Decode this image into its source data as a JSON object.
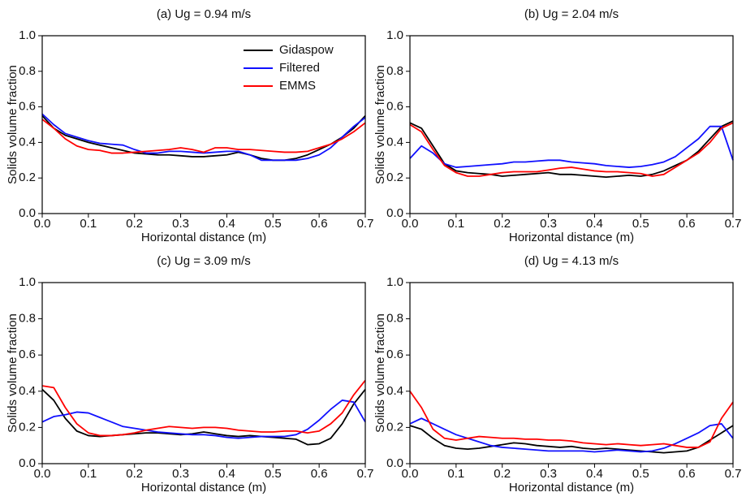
{
  "chart_data": [
    {
      "type": "line",
      "title": "(a) Ug = 0.94 m/s",
      "xlabel": "Horizontal distance (m)",
      "ylabel": "Solids volume fraction",
      "legend": "upper right",
      "x": [
        0,
        0.025,
        0.05,
        0.075,
        0.1,
        0.125,
        0.15,
        0.175,
        0.2,
        0.225,
        0.25,
        0.275,
        0.3,
        0.325,
        0.35,
        0.375,
        0.4,
        0.425,
        0.45,
        0.475,
        0.5,
        0.525,
        0.55,
        0.575,
        0.6,
        0.625,
        0.65,
        0.675,
        0.7
      ],
      "series": [
        {
          "name": "Gidaspow",
          "color": "#000000",
          "values": [
            0.55,
            0.48,
            0.44,
            0.42,
            0.4,
            0.385,
            0.37,
            0.355,
            0.34,
            0.335,
            0.33,
            0.33,
            0.325,
            0.32,
            0.32,
            0.325,
            0.33,
            0.345,
            0.33,
            0.31,
            0.3,
            0.3,
            0.31,
            0.33,
            0.36,
            0.39,
            0.43,
            0.48,
            0.55
          ]
        },
        {
          "name": "Filtered",
          "color": "#1010ff",
          "values": [
            0.56,
            0.5,
            0.45,
            0.43,
            0.41,
            0.395,
            0.39,
            0.385,
            0.36,
            0.34,
            0.34,
            0.35,
            0.35,
            0.345,
            0.34,
            0.345,
            0.35,
            0.35,
            0.33,
            0.3,
            0.3,
            0.3,
            0.3,
            0.31,
            0.33,
            0.37,
            0.43,
            0.49,
            0.54
          ]
        },
        {
          "name": "EMMS",
          "color": "#ff0000",
          "values": [
            0.53,
            0.48,
            0.42,
            0.38,
            0.36,
            0.355,
            0.34,
            0.34,
            0.345,
            0.35,
            0.355,
            0.36,
            0.37,
            0.36,
            0.345,
            0.37,
            0.37,
            0.36,
            0.36,
            0.355,
            0.35,
            0.345,
            0.345,
            0.35,
            0.37,
            0.39,
            0.42,
            0.46,
            0.51
          ]
        }
      ],
      "xlim": [
        0,
        0.7
      ],
      "ylim": [
        0,
        1
      ],
      "xticks": [
        {
          "value": 0,
          "label": "0.0"
        },
        0.1,
        0.2,
        0.3,
        0.4,
        0.5,
        0.6,
        0.7
      ],
      "yticks": [
        {
          "value": 0,
          "label": "0.0"
        },
        0.2,
        0.4,
        0.6,
        0.8,
        {
          "value": 1,
          "label": "1.0"
        }
      ]
    },
    {
      "type": "line",
      "title": "(b) Ug = 2.04 m/s",
      "xlabel": "Horizontal distance (m)",
      "ylabel": "Solids volume fraction",
      "x": [
        0,
        0.025,
        0.05,
        0.075,
        0.1,
        0.125,
        0.15,
        0.175,
        0.2,
        0.225,
        0.25,
        0.275,
        0.3,
        0.325,
        0.35,
        0.375,
        0.4,
        0.425,
        0.45,
        0.475,
        0.5,
        0.525,
        0.55,
        0.575,
        0.6,
        0.625,
        0.65,
        0.675,
        0.7
      ],
      "series": [
        {
          "color": "#000000",
          "values": [
            0.51,
            0.48,
            0.38,
            0.28,
            0.24,
            0.23,
            0.225,
            0.22,
            0.21,
            0.215,
            0.22,
            0.225,
            0.23,
            0.22,
            0.22,
            0.215,
            0.21,
            0.205,
            0.21,
            0.215,
            0.21,
            0.22,
            0.24,
            0.27,
            0.3,
            0.35,
            0.42,
            0.49,
            0.52
          ]
        },
        {
          "color": "#1010ff",
          "values": [
            0.31,
            0.38,
            0.34,
            0.28,
            0.26,
            0.265,
            0.27,
            0.275,
            0.28,
            0.29,
            0.29,
            0.295,
            0.3,
            0.3,
            0.29,
            0.285,
            0.28,
            0.27,
            0.265,
            0.26,
            0.265,
            0.275,
            0.29,
            0.32,
            0.37,
            0.42,
            0.49,
            0.49,
            0.3
          ]
        },
        {
          "color": "#ff0000",
          "values": [
            0.5,
            0.46,
            0.36,
            0.27,
            0.23,
            0.21,
            0.21,
            0.22,
            0.23,
            0.235,
            0.235,
            0.235,
            0.245,
            0.255,
            0.26,
            0.25,
            0.24,
            0.235,
            0.235,
            0.23,
            0.225,
            0.21,
            0.22,
            0.26,
            0.3,
            0.34,
            0.4,
            0.48,
            0.51
          ]
        }
      ],
      "xlim": [
        0,
        0.7
      ],
      "ylim": [
        0,
        1
      ],
      "xticks": [
        {
          "value": 0,
          "label": "0.0"
        },
        0.1,
        0.2,
        0.3,
        0.4,
        0.5,
        0.6,
        0.7
      ],
      "yticks": [
        {
          "value": 0,
          "label": "0.0"
        },
        0.2,
        0.4,
        0.6,
        0.8,
        {
          "value": 1,
          "label": "1.0"
        }
      ]
    },
    {
      "type": "line",
      "title": "(c) Ug = 3.09 m/s",
      "xlabel": "Horizontal distance (m)",
      "ylabel": "Solids volume fraction",
      "x": [
        0,
        0.025,
        0.05,
        0.075,
        0.1,
        0.125,
        0.15,
        0.175,
        0.2,
        0.225,
        0.25,
        0.275,
        0.3,
        0.325,
        0.35,
        0.375,
        0.4,
        0.425,
        0.45,
        0.475,
        0.5,
        0.525,
        0.55,
        0.575,
        0.6,
        0.625,
        0.65,
        0.675,
        0.7
      ],
      "series": [
        {
          "color": "#000000",
          "values": [
            0.41,
            0.35,
            0.25,
            0.18,
            0.155,
            0.15,
            0.155,
            0.16,
            0.165,
            0.17,
            0.17,
            0.165,
            0.16,
            0.165,
            0.175,
            0.165,
            0.155,
            0.15,
            0.155,
            0.15,
            0.145,
            0.14,
            0.135,
            0.105,
            0.11,
            0.14,
            0.22,
            0.33,
            0.41
          ]
        },
        {
          "color": "#1010ff",
          "values": [
            0.23,
            0.26,
            0.27,
            0.285,
            0.28,
            0.255,
            0.23,
            0.205,
            0.195,
            0.185,
            0.175,
            0.17,
            0.165,
            0.16,
            0.16,
            0.155,
            0.145,
            0.14,
            0.145,
            0.15,
            0.15,
            0.15,
            0.16,
            0.19,
            0.24,
            0.3,
            0.35,
            0.34,
            0.23
          ]
        },
        {
          "color": "#ff0000",
          "values": [
            0.43,
            0.42,
            0.31,
            0.22,
            0.17,
            0.155,
            0.155,
            0.16,
            0.17,
            0.185,
            0.195,
            0.205,
            0.2,
            0.195,
            0.2,
            0.2,
            0.195,
            0.185,
            0.18,
            0.175,
            0.175,
            0.18,
            0.18,
            0.17,
            0.18,
            0.22,
            0.28,
            0.38,
            0.46
          ]
        }
      ],
      "xlim": [
        0,
        0.7
      ],
      "ylim": [
        0,
        1
      ],
      "xticks": [
        {
          "value": 0,
          "label": "0.0"
        },
        0.1,
        0.2,
        0.3,
        0.4,
        0.5,
        0.6,
        0.7
      ],
      "yticks": [
        {
          "value": 0,
          "label": "0.0"
        },
        0.2,
        0.4,
        0.6,
        0.8,
        {
          "value": 1,
          "label": "1.0"
        }
      ]
    },
    {
      "type": "line",
      "title": "(d) Ug = 4.13 m/s",
      "xlabel": "Horizontal distance (m)",
      "ylabel": "Solids volume fraction",
      "x": [
        0,
        0.025,
        0.05,
        0.075,
        0.1,
        0.125,
        0.15,
        0.175,
        0.2,
        0.225,
        0.25,
        0.275,
        0.3,
        0.325,
        0.35,
        0.375,
        0.4,
        0.425,
        0.45,
        0.475,
        0.5,
        0.525,
        0.55,
        0.575,
        0.6,
        0.625,
        0.65,
        0.675,
        0.7
      ],
      "series": [
        {
          "color": "#000000",
          "values": [
            0.21,
            0.19,
            0.14,
            0.1,
            0.085,
            0.08,
            0.085,
            0.095,
            0.105,
            0.115,
            0.11,
            0.1,
            0.095,
            0.09,
            0.095,
            0.085,
            0.08,
            0.085,
            0.08,
            0.075,
            0.07,
            0.065,
            0.06,
            0.065,
            0.07,
            0.09,
            0.13,
            0.17,
            0.21
          ]
        },
        {
          "color": "#1010ff",
          "values": [
            0.22,
            0.25,
            0.22,
            0.19,
            0.16,
            0.14,
            0.12,
            0.1,
            0.09,
            0.085,
            0.08,
            0.075,
            0.07,
            0.07,
            0.07,
            0.07,
            0.065,
            0.07,
            0.075,
            0.07,
            0.065,
            0.07,
            0.085,
            0.11,
            0.14,
            0.17,
            0.21,
            0.22,
            0.14
          ]
        },
        {
          "color": "#ff0000",
          "values": [
            0.4,
            0.31,
            0.19,
            0.14,
            0.13,
            0.14,
            0.15,
            0.145,
            0.14,
            0.14,
            0.135,
            0.135,
            0.13,
            0.13,
            0.125,
            0.115,
            0.11,
            0.105,
            0.11,
            0.105,
            0.1,
            0.105,
            0.11,
            0.1,
            0.09,
            0.09,
            0.12,
            0.25,
            0.34
          ]
        }
      ],
      "xlim": [
        0,
        0.7
      ],
      "ylim": [
        0,
        1
      ],
      "xticks": [
        {
          "value": 0,
          "label": "0.0"
        },
        0.1,
        0.2,
        0.3,
        0.4,
        0.5,
        0.6,
        0.7
      ],
      "yticks": [
        {
          "value": 0,
          "label": "0.0"
        },
        0.2,
        0.4,
        0.6,
        0.8,
        {
          "value": 1,
          "label": "1.0"
        }
      ]
    }
  ]
}
